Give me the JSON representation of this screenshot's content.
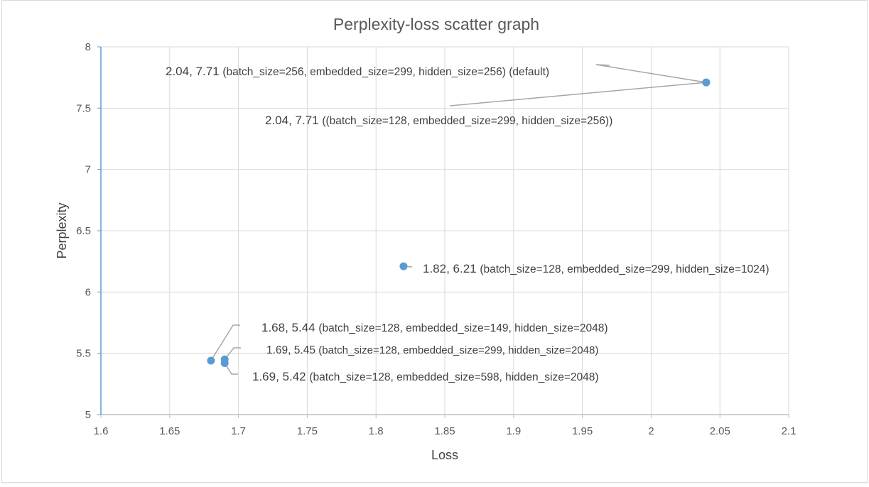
{
  "chart_data": {
    "type": "scatter",
    "title": "Perplexity-loss scatter graph",
    "xlabel": "Loss",
    "ylabel": "Perplexity",
    "xlim": [
      1.6,
      2.1
    ],
    "ylim": [
      5,
      8
    ],
    "xticks": [
      1.6,
      1.65,
      1.7,
      1.75,
      1.8,
      1.85,
      1.9,
      1.95,
      2,
      2.05,
      2.1
    ],
    "yticks": [
      5,
      5.5,
      6,
      6.5,
      7,
      7.5,
      8
    ],
    "xtick_labels": [
      "1.6",
      "1.65",
      "1.7",
      "1.75",
      "1.8",
      "1.85",
      "1.9",
      "1.95",
      "2",
      "2.05",
      "2.1"
    ],
    "ytick_labels": [
      "5",
      "5.5",
      "6",
      "6.5",
      "7",
      "7.5",
      "8"
    ],
    "grid": true,
    "marker_color": "#5b9bd5",
    "series": [
      {
        "name": "Perplexity",
        "points": [
          {
            "x": 2.04,
            "y": 7.71,
            "value_label": "2.04, 7.71",
            "params": "(batch_size=256, embedded_size=299, hidden_size=256) (default)"
          },
          {
            "x": 2.04,
            "y": 7.71,
            "value_label": "2.04, 7.71",
            "params": "((batch_size=128, embedded_size=299, hidden_size=256))"
          },
          {
            "x": 1.82,
            "y": 6.21,
            "value_label": "1.82, 6.21",
            "params": "(batch_size=128, embedded_size=299, hidden_size=1024)"
          },
          {
            "x": 1.68,
            "y": 5.44,
            "value_label": "1.68, 5.44",
            "params": "(batch_size=128, embedded_size=149, hidden_size=2048)"
          },
          {
            "x": 1.69,
            "y": 5.45,
            "value_label": "1.69, 5.45",
            "params": "(batch_size=128, embedded_size=299, hidden_size=2048)"
          },
          {
            "x": 1.69,
            "y": 5.42,
            "value_label": "1.69, 5.42",
            "params": "(batch_size=128, embedded_size=598, hidden_size=2048)"
          }
        ]
      }
    ]
  }
}
